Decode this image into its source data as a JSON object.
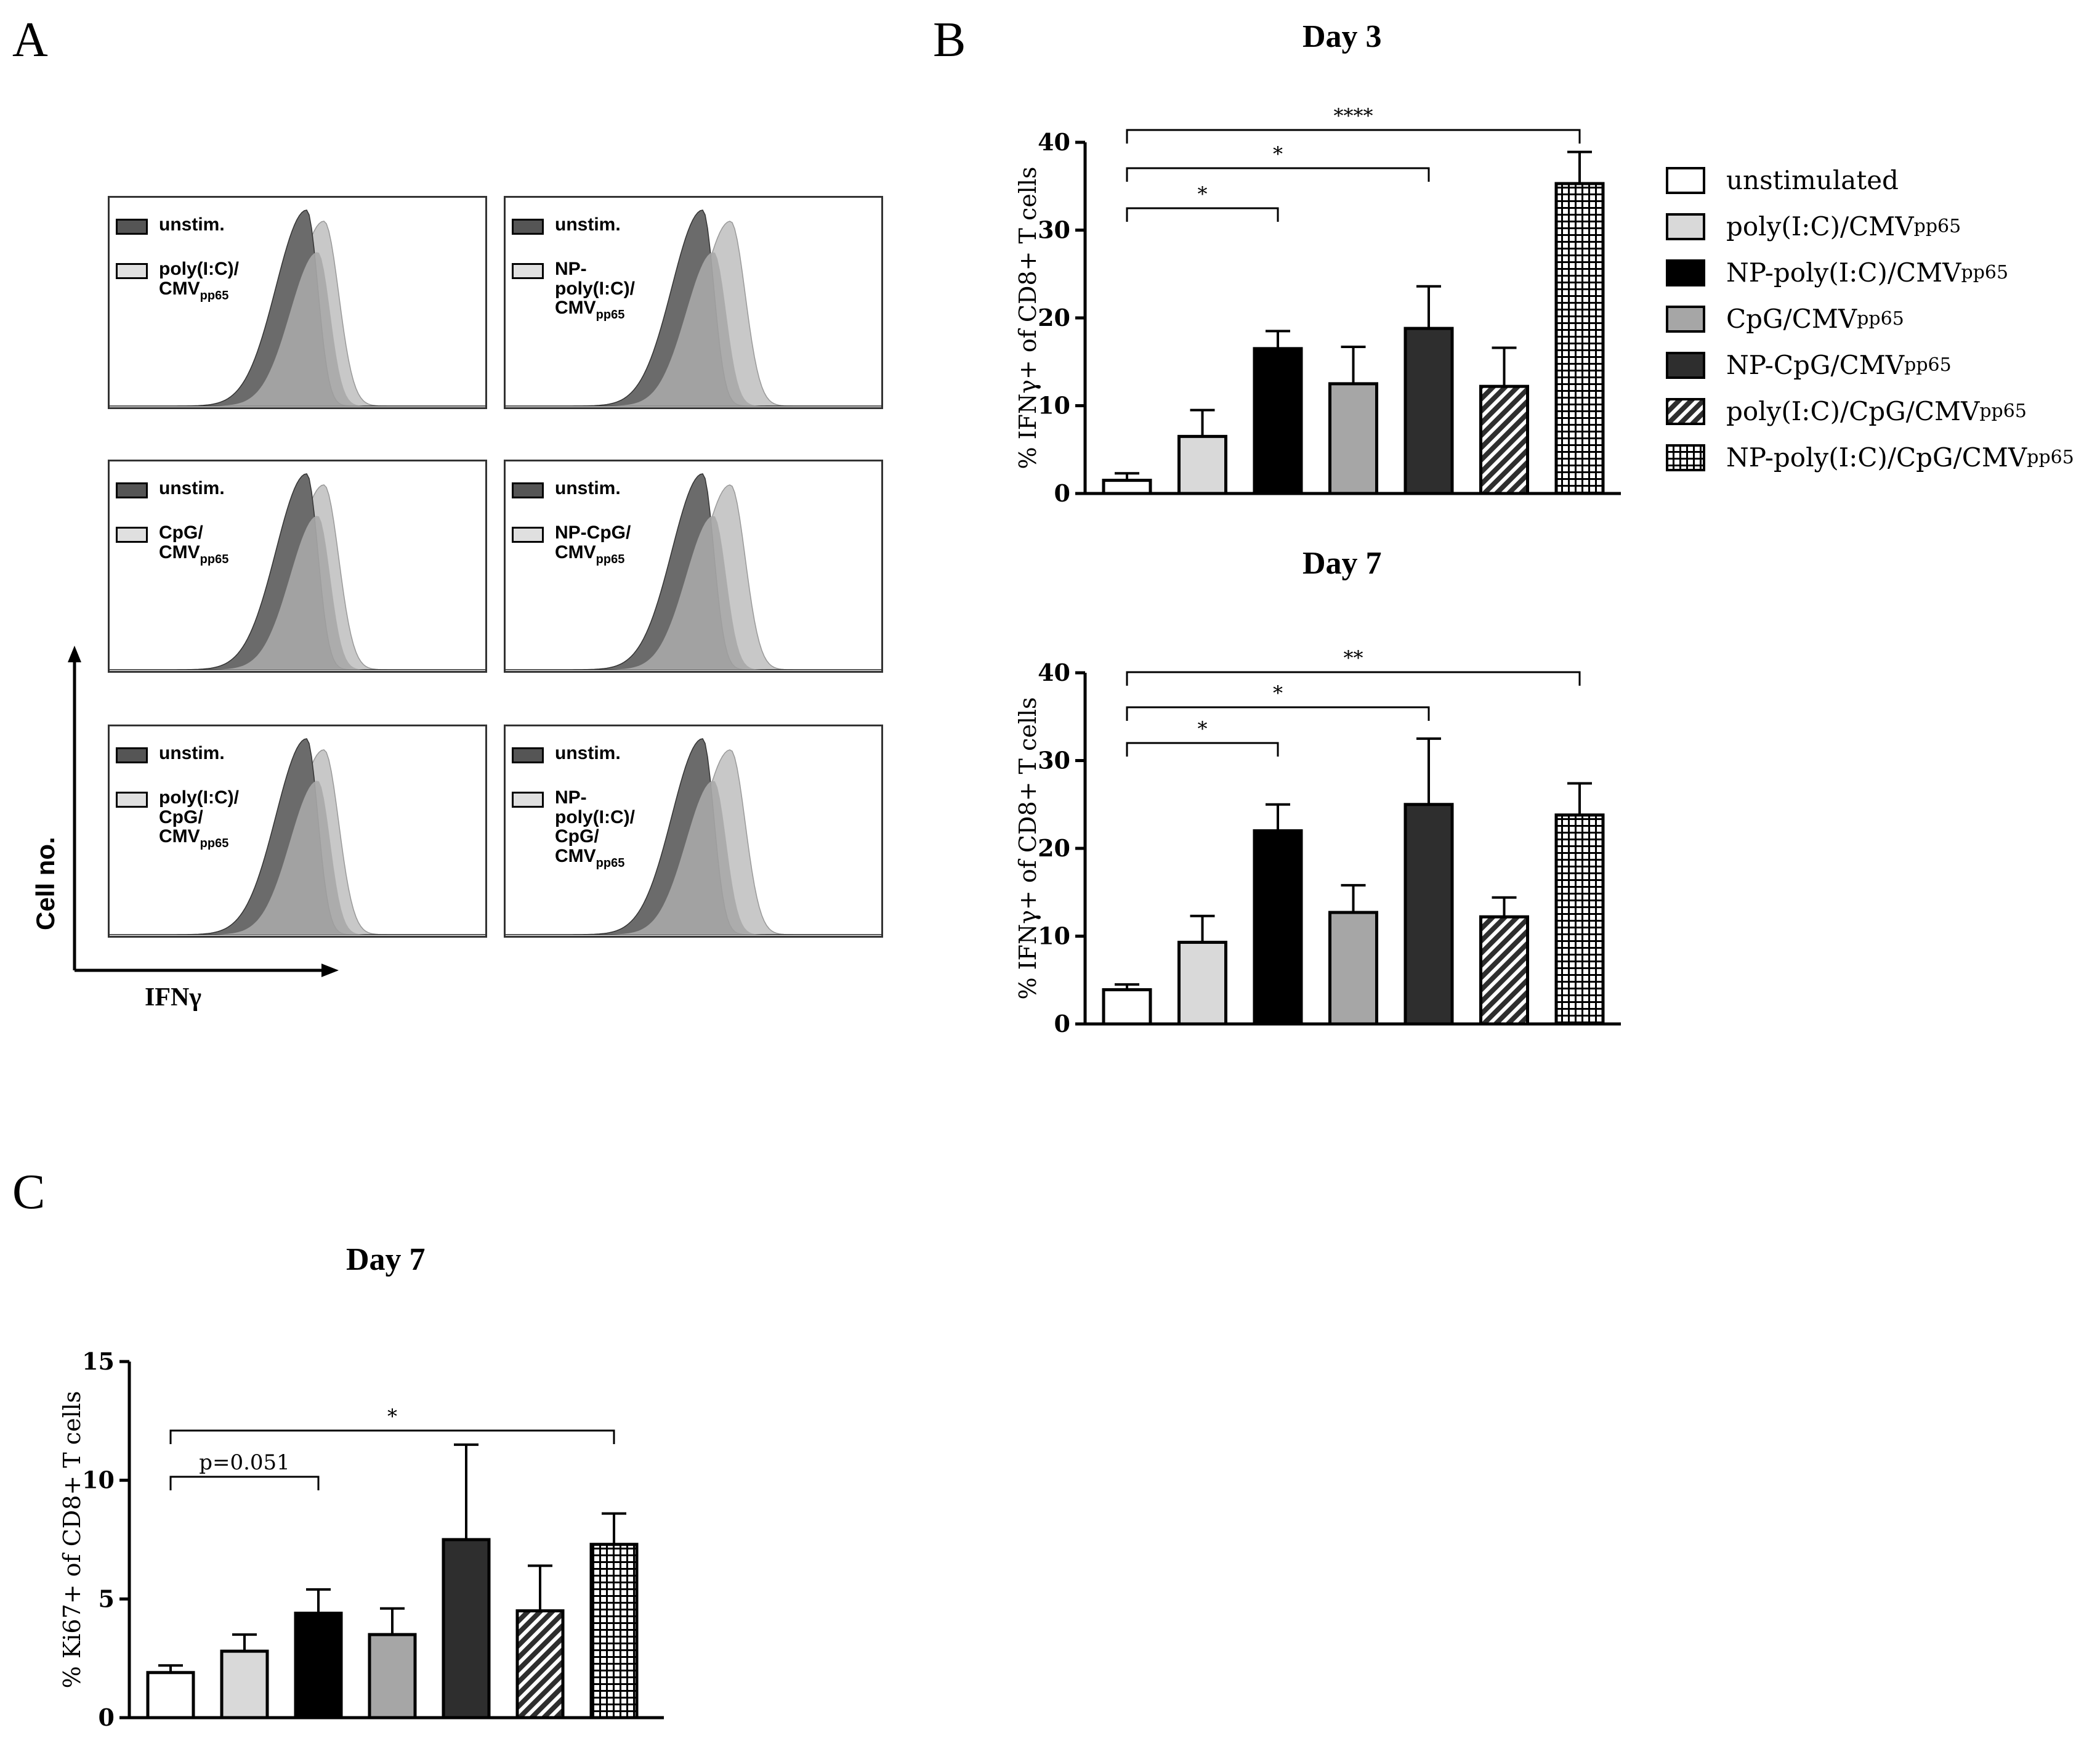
{
  "panels": {
    "a": "A",
    "b": "B",
    "c": "C"
  },
  "panel_a": {
    "xlabel": "IFNγ",
    "ylabel": "Cell no.",
    "boxes": [
      {
        "ref": "unstim.",
        "stim_lines": [
          "poly(I:C)/",
          "CMV"
        ],
        "sub": "pp65"
      },
      {
        "ref": "unstim.",
        "stim_lines": [
          "NP-",
          "poly(I:C)/",
          "CMV"
        ],
        "sub": "pp65"
      },
      {
        "ref": "unstim.",
        "stim_lines": [
          "CpG/",
          "CMV"
        ],
        "sub": "pp65"
      },
      {
        "ref": "unstim.",
        "stim_lines": [
          "NP-CpG/",
          "CMV"
        ],
        "sub": "pp65"
      },
      {
        "ref": "unstim.",
        "stim_lines": [
          "poly(I:C)/",
          "CpG/",
          "CMV"
        ],
        "sub": "pp65"
      },
      {
        "ref": "unstim.",
        "stim_lines": [
          "NP-",
          "poly(I:C)/",
          "CpG/",
          "CMV"
        ],
        "sub": "pp65"
      }
    ]
  },
  "legend": [
    {
      "label": "unstimulated",
      "sub": "",
      "fill": "white"
    },
    {
      "label": "poly(I:C)/CMV",
      "sub": "pp65",
      "fill": "light"
    },
    {
      "label": "NP-poly(I:C)/CMV",
      "sub": "pp65",
      "fill": "black"
    },
    {
      "label": "CpG/CMV",
      "sub": "pp65",
      "fill": "mid"
    },
    {
      "label": "NP-CpG/CMV",
      "sub": "pp65",
      "fill": "dark"
    },
    {
      "label": "poly(I:C)/CpG/CMV",
      "sub": "pp65",
      "fill": "hatch"
    },
    {
      "label": "NP-poly(I:C)/CpG/CMV",
      "sub": "pp65",
      "fill": "grid"
    }
  ],
  "colors": {
    "white": "#ffffff",
    "light": "#d9d9d9",
    "black": "#000000",
    "mid": "#a6a6a6",
    "dark": "#2e2e2e",
    "unstim_hist": "#6b6b6b",
    "stim_hist": "#c8c8c8"
  },
  "chart_data": [
    {
      "id": "day3",
      "type": "bar",
      "title": "Day 3",
      "ylabel": "% IFNγ+ of CD8+ T cells",
      "ylim": [
        0,
        40
      ],
      "yticks": [
        0,
        10,
        20,
        30,
        40
      ],
      "categories": [
        "unstimulated",
        "poly(I:C)/CMVpp65",
        "NP-poly(I:C)/CMVpp65",
        "CpG/CMVpp65",
        "NP-CpG/CMVpp65",
        "poly(I:C)/CpG/CMVpp65",
        "NP-poly(I:C)/CpG/CMVpp65"
      ],
      "values": [
        1.5,
        6.5,
        16.5,
        12.5,
        18.8,
        12.2,
        35.3
      ],
      "errors": [
        0.8,
        3.0,
        2.0,
        4.2,
        4.8,
        4.4,
        3.6
      ],
      "significance": [
        {
          "from": 0,
          "to": 2,
          "label": "*"
        },
        {
          "from": 0,
          "to": 4,
          "label": "*"
        },
        {
          "from": 0,
          "to": 6,
          "label": "****"
        }
      ]
    },
    {
      "id": "day7",
      "type": "bar",
      "title": "Day 7",
      "ylabel": "% IFNγ+ of CD8+ T cells",
      "ylim": [
        0,
        40
      ],
      "yticks": [
        0,
        10,
        20,
        30,
        40
      ],
      "categories": [
        "unstimulated",
        "poly(I:C)/CMVpp65",
        "NP-poly(I:C)/CMVpp65",
        "CpG/CMVpp65",
        "NP-CpG/CMVpp65",
        "poly(I:C)/CpG/CMVpp65",
        "NP-poly(I:C)/CpG/CMVpp65"
      ],
      "values": [
        3.9,
        9.3,
        22.0,
        12.7,
        25.0,
        12.2,
        23.8
      ],
      "errors": [
        0.6,
        3.0,
        3.0,
        3.1,
        7.5,
        2.2,
        3.6
      ],
      "significance": [
        {
          "from": 0,
          "to": 2,
          "label": "*"
        },
        {
          "from": 0,
          "to": 4,
          "label": "*"
        },
        {
          "from": 0,
          "to": 6,
          "label": "**"
        }
      ]
    },
    {
      "id": "day7ki67",
      "type": "bar",
      "title": "Day 7",
      "ylabel": "% Ki67+ of CD8+ T cells",
      "ylim": [
        0,
        15
      ],
      "yticks": [
        0,
        5,
        10,
        15
      ],
      "categories": [
        "unstimulated",
        "poly(I:C)/CMVpp65",
        "NP-poly(I:C)/CMVpp65",
        "CpG/CMVpp65",
        "NP-CpG/CMVpp65",
        "poly(I:C)/CpG/CMVpp65",
        "NP-poly(I:C)/CpG/CMVpp65"
      ],
      "values": [
        1.9,
        2.8,
        4.4,
        3.5,
        7.5,
        4.5,
        7.3
      ],
      "errors": [
        0.3,
        0.7,
        1.0,
        1.1,
        4.0,
        1.9,
        1.3
      ],
      "significance": [
        {
          "from": 0,
          "to": 2,
          "label": "p=0.051"
        },
        {
          "from": 0,
          "to": 6,
          "label": "*"
        }
      ]
    }
  ]
}
